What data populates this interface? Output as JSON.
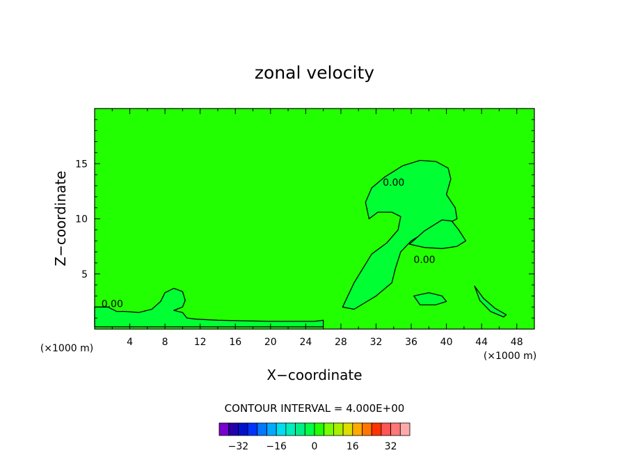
{
  "chart_data": {
    "type": "contour",
    "title": "zonal velocity",
    "xlabel": "X−coordinate",
    "ylabel": "Z−coordinate",
    "x_unit_left": "(×1000 m)",
    "x_unit_right": "(×1000 m)",
    "xlim": [
      0,
      50
    ],
    "ylim": [
      0,
      20
    ],
    "x_ticks": [
      4,
      8,
      12,
      16,
      20,
      24,
      28,
      32,
      36,
      40,
      44,
      48
    ],
    "y_ticks": [
      5,
      10,
      15
    ],
    "fill_color": "#22ff00",
    "contour_labels": [
      {
        "text": "0.00",
        "x": 2.0,
        "y": 2.0
      },
      {
        "text": "0.00",
        "x": 34.0,
        "y": 13.0
      },
      {
        "text": "0.00",
        "x": 37.5,
        "y": 6.0
      }
    ],
    "regions": [
      {
        "name": "plume-core",
        "level": 0,
        "color": "#00ff33",
        "points": [
          [
            28.2,
            2.0
          ],
          [
            29.5,
            4.2
          ],
          [
            31.5,
            6.8
          ],
          [
            33.2,
            7.8
          ],
          [
            34.5,
            9.0
          ],
          [
            34.8,
            10.2
          ],
          [
            33.8,
            10.6
          ],
          [
            32.2,
            10.6
          ],
          [
            31.2,
            10.0
          ],
          [
            30.8,
            11.5
          ],
          [
            31.5,
            12.8
          ],
          [
            33.0,
            13.8
          ],
          [
            35.0,
            14.8
          ],
          [
            37.0,
            15.3
          ],
          [
            38.8,
            15.2
          ],
          [
            40.2,
            14.6
          ],
          [
            40.5,
            13.6
          ],
          [
            40.0,
            12.2
          ],
          [
            41.0,
            11.0
          ],
          [
            41.2,
            10.0
          ],
          [
            40.0,
            9.5
          ],
          [
            38.0,
            9.0
          ],
          [
            36.0,
            8.0
          ],
          [
            34.8,
            7.0
          ],
          [
            34.2,
            5.5
          ],
          [
            33.8,
            4.2
          ],
          [
            32.0,
            3.0
          ],
          [
            29.5,
            1.8
          ]
        ]
      },
      {
        "name": "upper-lobe",
        "level": 0,
        "color": "#00ff33",
        "points": [
          [
            35.8,
            7.7
          ],
          [
            37.5,
            8.9
          ],
          [
            39.5,
            9.9
          ],
          [
            40.6,
            9.8
          ],
          [
            41.4,
            9.0
          ],
          [
            42.2,
            8.0
          ],
          [
            41.2,
            7.5
          ],
          [
            39.5,
            7.3
          ],
          [
            37.5,
            7.4
          ]
        ]
      },
      {
        "name": "right-pocket",
        "level": 0,
        "color": "#00ff33",
        "points": [
          [
            36.3,
            3.0
          ],
          [
            38.0,
            3.3
          ],
          [
            39.5,
            3.0
          ],
          [
            40.0,
            2.5
          ],
          [
            38.8,
            2.2
          ],
          [
            37.0,
            2.2
          ]
        ]
      },
      {
        "name": "left-surface-layer",
        "level": 0,
        "color": "#00ff33",
        "points": [
          [
            0,
            0.2
          ],
          [
            0,
            2.0
          ],
          [
            1.5,
            2.0
          ],
          [
            2.5,
            1.6
          ],
          [
            3.5,
            1.6
          ],
          [
            5,
            1.5
          ],
          [
            6.5,
            1.8
          ],
          [
            7.5,
            2.5
          ],
          [
            8,
            3.3
          ],
          [
            9.0,
            3.7
          ],
          [
            10.0,
            3.4
          ],
          [
            10.3,
            2.6
          ],
          [
            10.0,
            2.0
          ],
          [
            9.0,
            1.7
          ],
          [
            10.0,
            1.5
          ],
          [
            10.5,
            1.0
          ],
          [
            11.5,
            0.9
          ],
          [
            14.0,
            0.8
          ],
          [
            20.0,
            0.7
          ],
          [
            25.0,
            0.7
          ],
          [
            26.0,
            0.8
          ],
          [
            26.0,
            0.2
          ]
        ]
      },
      {
        "name": "right-ridge",
        "level": 0,
        "color": "#00ff33",
        "points": [
          [
            43.2,
            3.9
          ],
          [
            44.2,
            2.8
          ],
          [
            45.5,
            1.9
          ],
          [
            46.8,
            1.3
          ],
          [
            46.5,
            1.1
          ],
          [
            45.0,
            1.6
          ],
          [
            43.8,
            2.6
          ]
        ]
      }
    ],
    "colorbar": {
      "interval_label": "CONTOUR INTERVAL =  4.000E+00",
      "tick_labels": [
        "−32",
        "−16",
        "0",
        "16",
        "32"
      ],
      "tick_values": [
        -32,
        -16,
        0,
        16,
        32
      ],
      "levels": [
        -36,
        -32,
        -28,
        -24,
        -20,
        -16,
        -12,
        -8,
        -4,
        0,
        4,
        8,
        12,
        16,
        20,
        24,
        28,
        32,
        36
      ],
      "colors": [
        "#7700cc",
        "#2200aa",
        "#0011cc",
        "#0033ff",
        "#0077ff",
        "#00aaff",
        "#00ddee",
        "#00eebb",
        "#00ee88",
        "#00ff44",
        "#22ff00",
        "#77ff00",
        "#aaee00",
        "#dddd00",
        "#ffaa00",
        "#ff7700",
        "#ff3300",
        "#ff5555",
        "#ff7777",
        "#ffaaaa"
      ]
    }
  }
}
